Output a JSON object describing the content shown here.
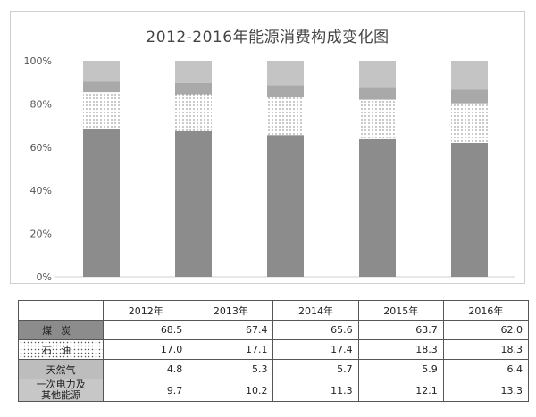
{
  "chart_data": {
    "type": "bar",
    "stacked": true,
    "percent": true,
    "title": "2012-2016年能源消费构成变化图",
    "categories": [
      "2012年",
      "2013年",
      "2014年",
      "2015年",
      "2016年"
    ],
    "series": [
      {
        "name": "煤 炭",
        "values": [
          68.5,
          67.4,
          65.6,
          63.7,
          62.0
        ],
        "color": "#8c8c8c",
        "pattern": "solid"
      },
      {
        "name": "石 油",
        "values": [
          17.0,
          17.1,
          17.4,
          18.3,
          18.3
        ],
        "color": "#ffffff",
        "pattern": "dotted"
      },
      {
        "name": "天然气",
        "values": [
          4.8,
          5.3,
          5.7,
          5.9,
          6.4
        ],
        "color": "#a9a9a9",
        "pattern": "solid"
      },
      {
        "name": "一次电力及其他能源",
        "values": [
          9.7,
          10.2,
          11.3,
          12.1,
          13.3
        ],
        "color": "#c4c4c4",
        "pattern": "solid"
      }
    ],
    "ylim": [
      0,
      100
    ],
    "yticks": [
      "0%",
      "20%",
      "40%",
      "60%",
      "80%",
      "100%"
    ],
    "grid": false
  },
  "table": {
    "headers": [
      "2012年",
      "2013年",
      "2014年",
      "2015年",
      "2016年"
    ],
    "rows": [
      {
        "label": "煤炭",
        "values": [
          "68.5",
          "67.4",
          "65.6",
          "63.7",
          "62.0"
        ]
      },
      {
        "label": "石油",
        "values": [
          "17.0",
          "17.1",
          "17.4",
          "18.3",
          "18.3"
        ]
      },
      {
        "label": "天然气",
        "values": [
          "4.8",
          "5.3",
          "5.7",
          "5.9",
          "6.4"
        ]
      },
      {
        "label_line1": "一次电力及",
        "label_line2": "其他能源",
        "values": [
          "9.7",
          "10.2",
          "11.3",
          "12.1",
          "13.3"
        ]
      }
    ]
  }
}
